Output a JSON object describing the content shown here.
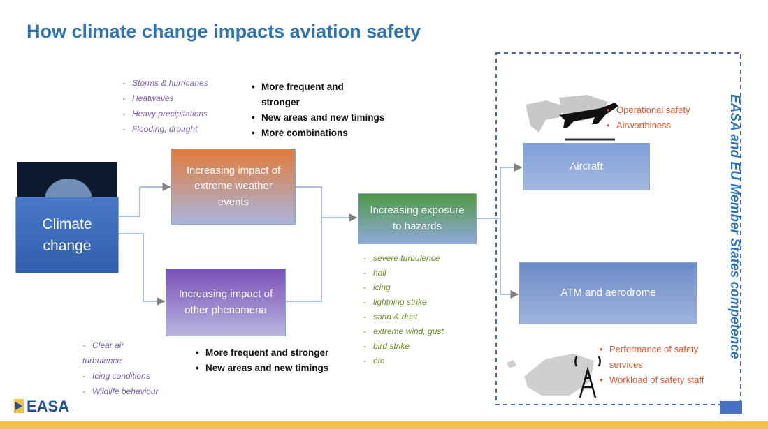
{
  "title": "How climate change impacts aviation safety",
  "extreme_events": [
    "Storms & hurricanes",
    "Heatwaves",
    "Heavy precipitations",
    "Flooding, drought"
  ],
  "extreme_notes": [
    "More frequent and stronger",
    "New areas and new timings",
    "More combinations"
  ],
  "other_phenomena": [
    "Clear air turbulence",
    "Icing conditions",
    "Wildlife behaviour"
  ],
  "other_notes": [
    "More frequent and stronger",
    "New areas and new timings"
  ],
  "nodes": {
    "climate": "Climate change",
    "extreme": "Increasing impact of extreme weather events",
    "other": "Increasing impact of other phenomena",
    "exposure": "Increasing exposure to hazards",
    "aircraft": "Aircraft",
    "atm": "ATM and aerodrome"
  },
  "hazards": [
    "severe turbulence",
    "hail",
    "icing",
    "lightning strike",
    "sand & dust",
    "extreme wind, gust",
    "bird strike",
    "etc"
  ],
  "aircraft_aspects": [
    "Operational safety",
    "Airworthiness"
  ],
  "atm_aspects": [
    "Performance of safety services",
    "Workload of safety staff"
  ],
  "competence": "EASA and EU Member States competence",
  "logo": "EASA"
}
